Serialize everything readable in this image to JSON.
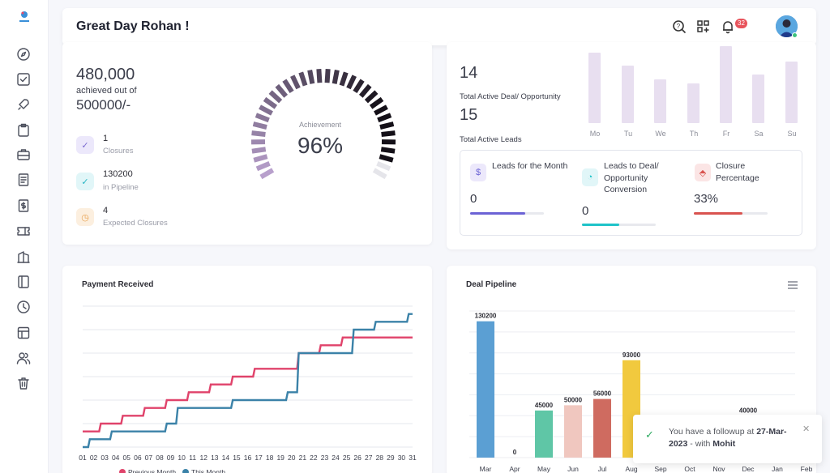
{
  "header": {
    "greeting": "Great Day Rohan !",
    "notification_count": "32"
  },
  "sidebar": {
    "items": [
      "compass-icon",
      "checklist-icon",
      "rocket-icon",
      "clipboard-icon",
      "briefcase-icon",
      "document-icon",
      "invoice-icon",
      "ticket-icon",
      "building-icon",
      "book-icon",
      "clock-icon",
      "table-icon",
      "users-icon",
      "trash-icon"
    ]
  },
  "target": {
    "achieved": "480,000",
    "achieved_label": "achieved out of",
    "total": "500000/-",
    "stats": [
      {
        "value": "1",
        "label": "Closures",
        "icon": "check-circle-icon",
        "color": "#7c6bd1",
        "bg": "#ece8fb"
      },
      {
        "value": "130200",
        "label": "in Pipeline",
        "icon": "check-circle-icon",
        "color": "#26b5c4",
        "bg": "#e1f6f8"
      },
      {
        "value": "4",
        "label": "Expected Closures",
        "icon": "clock-icon",
        "color": "#e8a14f",
        "bg": "#fcefdf"
      }
    ],
    "gauge_label": "Achievement",
    "gauge_value": "96%",
    "gauge_fraction": 0.96
  },
  "activity": {
    "active_deals": "14",
    "active_deals_label": "Total Active Deal/ Opportunity",
    "active_leads": "15",
    "active_leads_label": "Total Active Leads",
    "days": [
      "Mo",
      "Tu",
      "We",
      "Th",
      "Fr",
      "Sa",
      "Su"
    ],
    "day_values": [
      92,
      75,
      57,
      52,
      100,
      63,
      80
    ],
    "leads": [
      {
        "title": "Leads for the Month",
        "value": "0",
        "icon": "dollar-icon",
        "color": "#6c63d5",
        "bg": "#ece8fb",
        "fill": 0.75
      },
      {
        "title": "Leads to Deal/ Opportunity Conversion",
        "value": "0",
        "icon": "pie-icon",
        "color": "#1fc3c9",
        "bg": "#e1f6f8",
        "fill": 0.5
      },
      {
        "title": "Closure Percentage",
        "value": "33%",
        "icon": "tag-icon",
        "color": "#d9534f",
        "bg": "#fbe5e5",
        "fill": 0.66
      }
    ]
  },
  "payment": {
    "title": "Payment Received"
  },
  "pipeline": {
    "title": "Deal Pipeline"
  },
  "chart_data": [
    {
      "type": "line",
      "title": "Payment Received",
      "categories": [
        "01",
        "02",
        "03",
        "04",
        "05",
        "06",
        "07",
        "08",
        "09",
        "10",
        "11",
        "12",
        "13",
        "14",
        "15",
        "16",
        "17",
        "18",
        "19",
        "20",
        "21",
        "22",
        "23",
        "24",
        "25",
        "26",
        "27",
        "28",
        "29",
        "30",
        "31"
      ],
      "series": [
        {
          "name": "Previous Month",
          "color": "#e0436b",
          "values": [
            2,
            2,
            3,
            3,
            4,
            4,
            5,
            5,
            6,
            6,
            7,
            7,
            8,
            8,
            9,
            9,
            10,
            10,
            10,
            10,
            12,
            12,
            13,
            13,
            14,
            14,
            14,
            14,
            14,
            14,
            14
          ]
        },
        {
          "name": "This Month",
          "color": "#3b82a8",
          "values": [
            0,
            1,
            1,
            2,
            2,
            2,
            2,
            2,
            3,
            5,
            5,
            5,
            5,
            5,
            6,
            6,
            6,
            6,
            6,
            7,
            12,
            12,
            12,
            12,
            12,
            15,
            15,
            16,
            16,
            16,
            17
          ]
        }
      ],
      "ylim": [
        0,
        18
      ],
      "grid": true,
      "legend": "bottom"
    },
    {
      "type": "bar",
      "title": "Deal Pipeline",
      "categories": [
        "Mar",
        "Apr",
        "May",
        "Jun",
        "Jul",
        "Aug",
        "Sep",
        "Oct",
        "Nov",
        "Dec",
        "Jan",
        "Feb"
      ],
      "values": [
        130200,
        0,
        45000,
        50000,
        56000,
        93000,
        null,
        null,
        null,
        40000,
        null,
        null
      ],
      "labels": [
        "130200",
        "0",
        "45000",
        "50000",
        "56000",
        "93000",
        "",
        "",
        "",
        "40000",
        "",
        ""
      ],
      "colors": [
        "#5b9fd3",
        "#5b9fd3",
        "#5fc6a6",
        "#f0c7bf",
        "#cf6b60",
        "#f1c93e",
        "#5b9fd3",
        "#5b9fd3",
        "#5b9fd3",
        "#5b9fd3",
        "#5b9fd3",
        "#5b9fd3"
      ],
      "ylim": [
        0,
        140000
      ],
      "grid": true
    }
  ],
  "toast": {
    "text_prefix": "You have a followup at ",
    "date": "27-Mar-2023",
    "text_mid": " - with ",
    "person": "Mohit"
  }
}
